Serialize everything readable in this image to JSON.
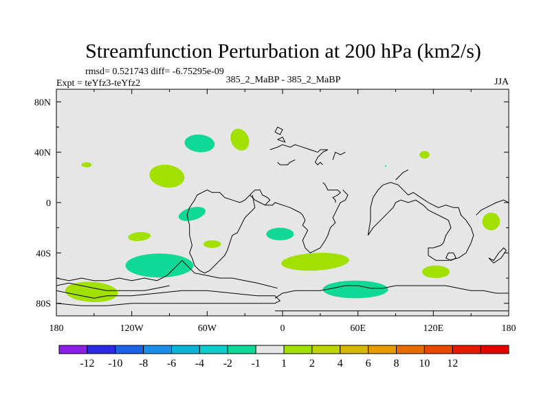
{
  "chart_data": {
    "type": "map-contour",
    "title": "Streamfunction Perturbation at 200 hPa (km2/s)",
    "stats": "rmsd= 0.521743 diff= -6.75295e-09",
    "experiment": "Expt = teYfz3-teYfz2",
    "subtitle": "385_2_MaBP - 385_2_MaBP",
    "season": "JJA",
    "lon_range": [
      -180,
      180
    ],
    "lat_range": [
      -90,
      90
    ],
    "x_ticks": [
      {
        "lon": -180,
        "label": "180"
      },
      {
        "lon": -120,
        "label": "120W"
      },
      {
        "lon": -60,
        "label": "60W"
      },
      {
        "lon": 0,
        "label": "0"
      },
      {
        "lon": 60,
        "label": "60E"
      },
      {
        "lon": 120,
        "label": "120E"
      },
      {
        "lon": 180,
        "label": "180"
      }
    ],
    "y_ticks": [
      {
        "lat": 80,
        "label": "80N"
      },
      {
        "lat": 40,
        "label": "40N"
      },
      {
        "lat": 0,
        "label": "0"
      },
      {
        "lat": -40,
        "label": "40S"
      },
      {
        "lat": -80,
        "label": "80S"
      }
    ],
    "colorbar": {
      "colors": [
        "#8a1fe6",
        "#2a2ae0",
        "#1e62e6",
        "#1c8ee6",
        "#0cb4d6",
        "#0ccfcc",
        "#10d896",
        "#e6e6e6",
        "#a2e000",
        "#bcd800",
        "#d6b800",
        "#e69c00",
        "#e66c00",
        "#e64a00",
        "#e61a00",
        "#e60000"
      ],
      "labels": [
        "-12",
        "-10",
        "-8",
        "-6",
        "-4",
        "-2",
        "-1",
        "1",
        "2",
        "4",
        "6",
        "8",
        "10",
        "12"
      ]
    },
    "field_background": "#e6e6e6",
    "anomaly_patches": [
      {
        "lon": -66,
        "lat": 47,
        "dlon": 12,
        "dlat": 7,
        "rot": 5,
        "color": "#10d896"
      },
      {
        "lon": -34,
        "lat": 50,
        "dlon": 7,
        "dlat": 9,
        "rot": -25,
        "color": "#a2e000"
      },
      {
        "lon": -156,
        "lat": 30,
        "dlon": 4,
        "dlat": 2,
        "rot": 0,
        "color": "#a2e000"
      },
      {
        "lon": -92,
        "lat": 21,
        "dlon": 14,
        "dlat": 9,
        "rot": 8,
        "color": "#a2e000"
      },
      {
        "lon": 113,
        "lat": 38,
        "dlon": 4,
        "dlat": 3,
        "rot": 0,
        "color": "#a2e000"
      },
      {
        "lon": 82,
        "lat": 29,
        "dlon": 0.6,
        "dlat": 0.6,
        "rot": 0,
        "color": "#10d896"
      },
      {
        "lon": -72,
        "lat": -9,
        "dlon": 11,
        "dlat": 5,
        "rot": -15,
        "color": "#10d896"
      },
      {
        "lon": -114,
        "lat": -27,
        "dlon": 9,
        "dlat": 3.5,
        "rot": -5,
        "color": "#a2e000"
      },
      {
        "lon": -56,
        "lat": -33,
        "dlon": 7,
        "dlat": 3,
        "rot": 0,
        "color": "#a2e000"
      },
      {
        "lon": -2,
        "lat": -25,
        "dlon": 11,
        "dlat": 5,
        "rot": 0,
        "color": "#10d896"
      },
      {
        "lon": 166,
        "lat": -15,
        "dlon": 7,
        "dlat": 7,
        "rot": 30,
        "color": "#a2e000"
      },
      {
        "lon": -98,
        "lat": -50,
        "dlon": 27,
        "dlat": 9.5,
        "rot": 0,
        "color": "#10d896"
      },
      {
        "lon": 26,
        "lat": -47,
        "dlon": 27,
        "dlat": 7,
        "rot": -3,
        "color": "#a2e000"
      },
      {
        "lon": 122,
        "lat": -55,
        "dlon": 11,
        "dlat": 5,
        "rot": 0,
        "color": "#a2e000"
      },
      {
        "lon": -152,
        "lat": -71,
        "dlon": 21,
        "dlat": 8,
        "rot": 3,
        "color": "#a2e000"
      },
      {
        "lon": 58,
        "lat": -69,
        "dlon": 26,
        "dlat": 7,
        "rot": 0,
        "color": "#10d896"
      }
    ],
    "coastlines": [
      [
        [
          -10,
          42
        ],
        [
          -4,
          44
        ],
        [
          0,
          46
        ],
        [
          6,
          44
        ],
        [
          10,
          46
        ],
        [
          16,
          44
        ],
        [
          22,
          42
        ],
        [
          28,
          40
        ],
        [
          30,
          42
        ],
        [
          36,
          42
        ],
        [
          32,
          40
        ],
        [
          28,
          36
        ],
        [
          26,
          32
        ],
        [
          28,
          30
        ],
        [
          30,
          32
        ],
        [
          32,
          30
        ]
      ],
      [
        [
          -4,
          32
        ],
        [
          -2,
          30
        ],
        [
          4,
          30
        ],
        [
          6,
          32
        ],
        [
          10,
          34
        ]
      ],
      [
        [
          40,
          34
        ],
        [
          42,
          40
        ],
        [
          46,
          38
        ],
        [
          50,
          40
        ]
      ],
      [
        [
          32,
          16
        ],
        [
          34,
          14
        ],
        [
          36,
          10
        ],
        [
          44,
          10
        ],
        [
          46,
          8
        ],
        [
          44,
          6
        ],
        [
          40,
          4
        ],
        [
          42,
          2
        ],
        [
          42,
          0
        ]
      ],
      [
        [
          -26,
          6
        ],
        [
          -24,
          4
        ],
        [
          -22,
          2
        ],
        [
          -18,
          0
        ],
        [
          -14,
          -2
        ],
        [
          -8,
          -2
        ],
        [
          -6,
          0
        ],
        [
          0,
          -2
        ],
        [
          6,
          -4
        ],
        [
          10,
          -6
        ],
        [
          14,
          -8
        ],
        [
          16,
          -10
        ],
        [
          18,
          -14
        ],
        [
          16,
          -18
        ],
        [
          20,
          -22
        ],
        [
          18,
          -26
        ],
        [
          16,
          -30
        ],
        [
          18,
          -36
        ],
        [
          22,
          -40
        ],
        [
          26,
          -38
        ],
        [
          30,
          -36
        ],
        [
          34,
          -30
        ],
        [
          36,
          -26
        ],
        [
          38,
          -20
        ],
        [
          42,
          -16
        ],
        [
          40,
          -12
        ],
        [
          42,
          -8
        ],
        [
          44,
          -4
        ],
        [
          46,
          0
        ],
        [
          50,
          2
        ],
        [
          52,
          6
        ],
        [
          48,
          10
        ]
      ],
      [
        [
          -26,
          6
        ],
        [
          -24,
          8
        ],
        [
          -22,
          10
        ],
        [
          -18,
          10
        ],
        [
          -16,
          6
        ],
        [
          -12,
          4
        ],
        [
          -10,
          2
        ],
        [
          -12,
          0
        ],
        [
          -14,
          -2
        ]
      ],
      [
        [
          -24,
          6
        ],
        [
          -22,
          -4
        ],
        [
          -30,
          -12
        ],
        [
          -34,
          -20
        ],
        [
          -36,
          -24
        ],
        [
          -40,
          -26
        ],
        [
          -42,
          -32
        ],
        [
          -44,
          -38
        ],
        [
          -46,
          -42
        ],
        [
          -50,
          -46
        ],
        [
          -54,
          -50
        ],
        [
          -58,
          -54
        ],
        [
          -62,
          -56
        ],
        [
          -66,
          -54
        ],
        [
          -70,
          -50
        ],
        [
          -72,
          -44
        ],
        [
          -74,
          -40
        ],
        [
          -72,
          -34
        ],
        [
          -74,
          -26
        ],
        [
          -74,
          -18
        ],
        [
          -76,
          -10
        ],
        [
          -74,
          -4
        ],
        [
          -70,
          2
        ],
        [
          -68,
          6
        ],
        [
          -64,
          8
        ],
        [
          -60,
          10
        ],
        [
          -56,
          8
        ],
        [
          -50,
          8
        ],
        [
          -46,
          4
        ],
        [
          -40,
          2
        ],
        [
          -34,
          0
        ],
        [
          -30,
          2
        ],
        [
          -26,
          6
        ]
      ],
      [
        [
          -80,
          -46
        ],
        [
          -84,
          -50
        ],
        [
          -88,
          -54
        ],
        [
          -92,
          -58
        ],
        [
          -96,
          -60
        ],
        [
          -100,
          -62
        ],
        [
          -110,
          -60
        ],
        [
          -120,
          -62
        ],
        [
          -130,
          -60
        ],
        [
          -140,
          -62
        ],
        [
          -150,
          -62
        ],
        [
          -160,
          -60
        ],
        [
          -170,
          -62
        ],
        [
          -180,
          -60
        ]
      ],
      [
        [
          -80,
          -46
        ],
        [
          -76,
          -50
        ],
        [
          -70,
          -56
        ],
        [
          -60,
          -58
        ],
        [
          -50,
          -60
        ],
        [
          -40,
          -60
        ],
        [
          -30,
          -62
        ],
        [
          -20,
          -64
        ],
        [
          -12,
          -66
        ],
        [
          -4,
          -68
        ]
      ],
      [
        [
          -180,
          -70
        ],
        [
          -170,
          -72
        ],
        [
          -160,
          -74
        ],
        [
          -150,
          -76
        ],
        [
          -140,
          -74
        ],
        [
          -120,
          -74
        ],
        [
          -100,
          -72
        ],
        [
          -80,
          -70
        ],
        [
          -60,
          -70
        ],
        [
          -40,
          -72
        ],
        [
          -20,
          -74
        ],
        [
          -6,
          -74
        ],
        [
          -2,
          -78
        ],
        [
          -6,
          -80
        ],
        [
          -20,
          -80
        ],
        [
          -40,
          -80
        ],
        [
          -60,
          -80
        ],
        [
          -80,
          -80
        ],
        [
          -100,
          -80
        ],
        [
          -120,
          -80
        ],
        [
          -140,
          -82
        ],
        [
          -160,
          -82
        ],
        [
          -180,
          -80
        ]
      ],
      [
        [
          -180,
          -66
        ],
        [
          -170,
          -64
        ],
        [
          -160,
          -66
        ],
        [
          -150,
          -68
        ],
        [
          -140,
          -70
        ],
        [
          -130,
          -70
        ],
        [
          -120,
          -70
        ],
        [
          -110,
          -70
        ],
        [
          -100,
          -68
        ],
        [
          -90,
          -66
        ]
      ],
      [
        [
          -6,
          -76
        ],
        [
          0,
          -72
        ],
        [
          10,
          -70
        ],
        [
          20,
          -70
        ],
        [
          30,
          -70
        ],
        [
          40,
          -68
        ],
        [
          50,
          -66
        ],
        [
          60,
          -66
        ],
        [
          70,
          -68
        ],
        [
          80,
          -68
        ],
        [
          90,
          -66
        ],
        [
          100,
          -66
        ],
        [
          110,
          -66
        ],
        [
          120,
          -66
        ],
        [
          130,
          -66
        ],
        [
          140,
          -68
        ],
        [
          150,
          -70
        ],
        [
          160,
          -70
        ],
        [
          170,
          -72
        ],
        [
          180,
          -72
        ]
      ],
      [
        [
          -6,
          -86
        ],
        [
          20,
          -86
        ],
        [
          60,
          -86
        ],
        [
          100,
          -86
        ],
        [
          140,
          -86
        ],
        [
          180,
          -86
        ]
      ],
      [
        [
          68,
          -26
        ],
        [
          72,
          -20
        ],
        [
          78,
          -14
        ],
        [
          84,
          -8
        ],
        [
          88,
          -4
        ],
        [
          90,
          0
        ],
        [
          94,
          2
        ],
        [
          100,
          0
        ],
        [
          106,
          2
        ],
        [
          112,
          -2
        ],
        [
          116,
          -6
        ],
        [
          120,
          -8
        ],
        [
          124,
          -10
        ],
        [
          128,
          -12
        ],
        [
          132,
          -14
        ],
        [
          134,
          -20
        ],
        [
          130,
          -26
        ],
        [
          128,
          -32
        ],
        [
          126,
          -34
        ],
        [
          120,
          -36
        ],
        [
          116,
          -36
        ],
        [
          116,
          -42
        ],
        [
          122,
          -46
        ],
        [
          132,
          -46
        ],
        [
          140,
          -44
        ],
        [
          146,
          -40
        ],
        [
          148,
          -36
        ],
        [
          150,
          -32
        ],
        [
          152,
          -26
        ],
        [
          150,
          -20
        ],
        [
          146,
          -14
        ],
        [
          142,
          -10
        ],
        [
          140,
          -4
        ],
        [
          136,
          -4
        ],
        [
          130,
          -2
        ],
        [
          124,
          -4
        ],
        [
          120,
          -2
        ],
        [
          116,
          0
        ],
        [
          110,
          4
        ],
        [
          104,
          8
        ],
        [
          100,
          6
        ],
        [
          96,
          10
        ],
        [
          92,
          14
        ],
        [
          86,
          16
        ],
        [
          80,
          14
        ],
        [
          76,
          10
        ],
        [
          72,
          4
        ],
        [
          70,
          -4
        ],
        [
          70,
          -14
        ],
        [
          68,
          -26
        ]
      ],
      [
        [
          154,
          -10
        ],
        [
          158,
          -6
        ],
        [
          162,
          -4
        ],
        [
          166,
          -2
        ],
        [
          170,
          0
        ],
        [
          176,
          2
        ],
        [
          180,
          0
        ]
      ],
      [
        [
          136,
          -40
        ],
        [
          138,
          -44
        ],
        [
          134,
          -46
        ],
        [
          130,
          -44
        ],
        [
          132,
          -40
        ],
        [
          136,
          -40
        ]
      ],
      [
        [
          164,
          -44
        ],
        [
          168,
          -46
        ],
        [
          172,
          -40
        ],
        [
          176,
          -36
        ],
        [
          178,
          -38
        ],
        [
          174,
          -44
        ],
        [
          168,
          -48
        ],
        [
          164,
          -44
        ]
      ],
      [
        [
          -6,
          56
        ],
        [
          -4,
          60
        ],
        [
          0,
          58
        ],
        [
          -2,
          54
        ],
        [
          -6,
          56
        ]
      ],
      [
        [
          -4,
          50
        ],
        [
          0,
          52
        ],
        [
          2,
          48
        ],
        [
          -4,
          50
        ]
      ],
      [
        [
          90,
          18
        ],
        [
          96,
          24
        ],
        [
          100,
          26
        ]
      ]
    ]
  }
}
